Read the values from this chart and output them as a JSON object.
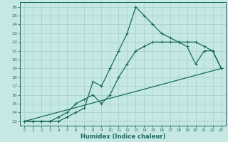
{
  "xlabel": "Humidex (Indice chaleur)",
  "xlim": [
    -0.5,
    23.5
  ],
  "ylim": [
    12.5,
    26.5
  ],
  "yticks": [
    13,
    14,
    15,
    16,
    17,
    18,
    19,
    20,
    21,
    22,
    23,
    24,
    25,
    26
  ],
  "xticks": [
    0,
    1,
    2,
    3,
    4,
    5,
    6,
    7,
    8,
    9,
    10,
    11,
    12,
    13,
    14,
    15,
    16,
    17,
    18,
    19,
    20,
    21,
    22,
    23
  ],
  "bg_color": "#c5e8e5",
  "grid_color": "#a8d4ce",
  "line_color": "#1a6b5a",
  "line1_x": [
    0,
    1,
    2,
    3,
    4,
    5,
    6,
    7,
    8,
    9,
    10,
    11,
    12,
    13,
    14,
    15,
    16,
    17,
    18,
    19,
    20,
    21,
    22,
    23
  ],
  "line1_y": [
    13,
    13,
    13,
    13,
    13,
    13.5,
    14,
    14.5,
    17.5,
    17,
    19,
    21,
    23,
    26,
    25,
    24,
    23,
    22.5,
    22,
    21.5,
    19.5,
    21,
    21,
    19
  ],
  "line2_x": [
    0,
    1,
    2,
    3,
    4,
    5,
    6,
    7,
    8,
    9,
    10,
    11,
    12,
    13,
    14,
    15,
    16,
    17,
    18,
    19,
    20,
    21,
    22,
    23
  ],
  "line2_y": [
    13,
    13,
    13,
    13,
    13.5,
    14,
    15,
    15.5,
    16,
    15,
    16,
    18,
    19.5,
    21,
    21.5,
    22,
    22,
    22,
    22,
    22,
    22,
    21.5,
    21,
    19
  ],
  "line3_x": [
    0,
    23
  ],
  "line3_y": [
    13,
    19
  ]
}
